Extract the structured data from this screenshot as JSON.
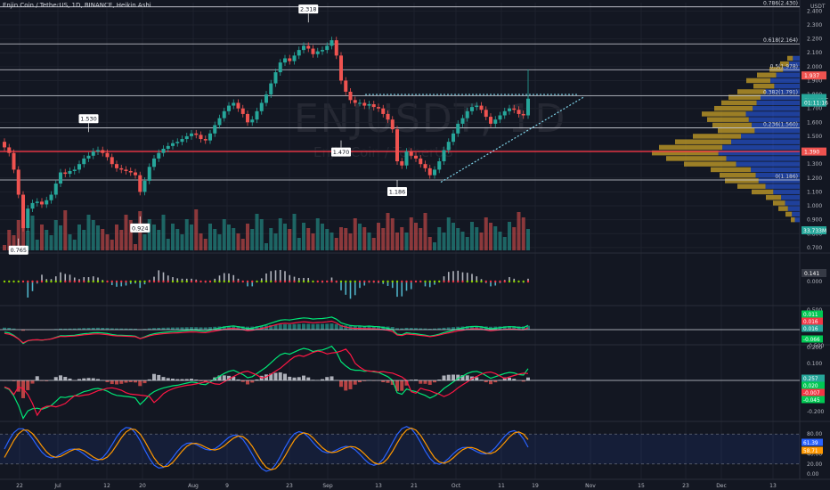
{
  "header": {
    "title": "Enjin Coin / TetherUS, 1D, BINANCE, Heikin Ashi",
    "watermark_symbol": "ENJUSDT, 1D",
    "watermark_name": "Enjin Coin / TetherUS"
  },
  "colors": {
    "background": "#131722",
    "bull": "#26a69a",
    "bear": "#ef5350",
    "grid": "#1e222d",
    "text": "#b2b5be",
    "volume_profile_blue": "#2962ff",
    "volume_profile_orange": "#c9a227"
  },
  "chart_data": [
    {
      "type": "candlestick",
      "title": "Enjin Coin / TetherUS, 1D, BINANCE, Heikin Ashi",
      "y_axis_unit": "USDT",
      "y_ticks": [
        "2.400",
        "2.300",
        "2.200",
        "2.100",
        "2.000",
        "1.900",
        "1.800",
        "1.700",
        "1.600",
        "1.500",
        "1.400",
        "1.300",
        "1.200",
        "1.100",
        "1.000",
        "0.900",
        "0.800",
        "0.700"
      ],
      "ylim": [
        0.68,
        2.46
      ],
      "x_ticks": [
        "22",
        "Jul",
        "12",
        "20",
        "Aug",
        "9",
        "23",
        "Sep",
        "13",
        "21",
        "Oct",
        "11",
        "19",
        "Nov",
        "15",
        "23",
        "Dec",
        "13"
      ],
      "fib_levels": [
        {
          "label": "0.786(2.430)",
          "value": 2.43
        },
        {
          "label": "0.618(2.164)",
          "value": 2.164
        },
        {
          "label": "0.5(1.978)",
          "value": 1.978
        },
        {
          "label": "0.382(1.791)",
          "value": 1.791
        },
        {
          "label": "0.236(1.560)",
          "value": 1.56
        },
        {
          "label": "0(1.186)",
          "value": 1.186
        }
      ],
      "red_support": 1.39,
      "price_labels": [
        {
          "text": "1.937",
          "value": 1.937,
          "color": "#ef5350"
        },
        {
          "text": "1.775",
          "value": 1.775,
          "color": "#26a69a"
        },
        {
          "text": "ENJUSDT",
          "value": 1.76,
          "color": "#26a69a"
        },
        {
          "text": "01:11:16",
          "value": 1.742,
          "color": "#26a69a"
        },
        {
          "text": "1.390",
          "value": 1.39,
          "color": "#ef5350"
        }
      ],
      "volume_label": "33.733M",
      "annotations": [
        {
          "text": "2.318",
          "value": 2.318,
          "candle": 65
        },
        {
          "text": "1.530",
          "value": 1.53,
          "candle": 18
        },
        {
          "text": "1.470",
          "value": 1.47,
          "candle": 72
        },
        {
          "text": "1.186",
          "value": 1.186,
          "candle": 84
        },
        {
          "text": "0.924",
          "value": 0.924,
          "candle": 29
        },
        {
          "text": "0.765",
          "value": 0.765,
          "candle": 3
        }
      ],
      "closes": [
        1.42,
        1.38,
        1.26,
        1.08,
        0.84,
        0.98,
        1.02,
        1.03,
        1.01,
        1.04,
        1.08,
        1.16,
        1.24,
        1.23,
        1.25,
        1.26,
        1.3,
        1.34,
        1.36,
        1.39,
        1.4,
        1.38,
        1.35,
        1.3,
        1.27,
        1.26,
        1.25,
        1.24,
        1.22,
        1.1,
        1.18,
        1.28,
        1.34,
        1.38,
        1.41,
        1.43,
        1.45,
        1.46,
        1.48,
        1.5,
        1.52,
        1.51,
        1.48,
        1.47,
        1.52,
        1.58,
        1.63,
        1.68,
        1.72,
        1.74,
        1.7,
        1.66,
        1.6,
        1.62,
        1.68,
        1.74,
        1.8,
        1.88,
        1.96,
        2.03,
        2.06,
        2.04,
        2.08,
        2.12,
        2.15,
        2.13,
        2.09,
        2.11,
        2.12,
        2.15,
        2.19,
        2.08,
        1.9,
        1.82,
        1.76,
        1.74,
        1.74,
        1.72,
        1.73,
        1.71,
        1.7,
        1.66,
        1.62,
        1.55,
        1.32,
        1.29,
        1.39,
        1.36,
        1.34,
        1.3,
        1.27,
        1.22,
        1.26,
        1.32,
        1.4,
        1.46,
        1.52,
        1.59,
        1.63,
        1.68,
        1.71,
        1.72,
        1.69,
        1.64,
        1.59,
        1.62,
        1.65,
        1.68,
        1.7,
        1.69,
        1.66,
        1.65,
        1.77
      ]
    },
    {
      "type": "bar",
      "title": "Squeeze momentum",
      "y_ticks": [
        "0.000"
      ],
      "value_label": "0.141"
    },
    {
      "type": "line",
      "title": "MACD (upper)",
      "y_ticks": [
        "0.500",
        "0.000",
        "-0.500"
      ],
      "value_labels": [
        "0.011",
        "0.016",
        "0.016",
        "-0.066"
      ]
    },
    {
      "type": "line",
      "title": "MACD (lower)",
      "y_ticks": [
        "0.200",
        "0.100",
        "0.000",
        "-0.100",
        "-0.200"
      ],
      "value_labels": [
        "0.257",
        "0.020",
        "-0.007",
        "-0.045"
      ]
    },
    {
      "type": "line",
      "title": "Stochastic RSI",
      "y_ticks": [
        "80.00",
        "60.00",
        "40.00",
        "20.00",
        "0.00"
      ],
      "value_labels": [
        "61.39",
        "58.71"
      ]
    }
  ]
}
